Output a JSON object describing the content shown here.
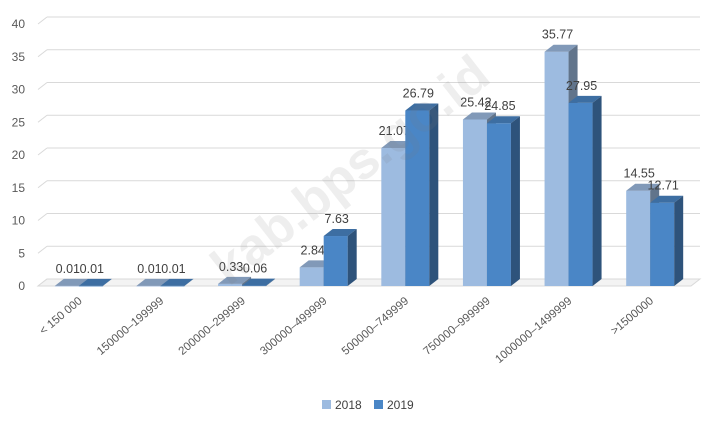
{
  "watermark": "kab.bps.go.id",
  "chart_data": {
    "type": "bar",
    "title": "",
    "xlabel": "",
    "ylabel": "",
    "ylim": [
      0,
      40
    ],
    "yticks": [
      0,
      5,
      10,
      15,
      20,
      25,
      30,
      35,
      40
    ],
    "grid": true,
    "legend": "bottom",
    "style": "3d-clustered-column",
    "categories": [
      "< 150 000",
      "150000–199999",
      "200000–299999",
      "300000–499999",
      "500000–749999",
      "750000–999999",
      "1000000–1499999",
      ">1500000"
    ],
    "series": [
      {
        "name": "2018",
        "color": "#9DBBE0",
        "values": [
          0.01,
          0.01,
          0.33,
          2.84,
          21.07,
          25.42,
          35.77,
          14.55
        ],
        "labels": [
          "0.01",
          "0.01",
          "0.33",
          "2.84",
          "21.07",
          "25.42",
          "35.77",
          "14.55"
        ]
      },
      {
        "name": "2019",
        "color": "#4A86C6",
        "values": [
          0.01,
          0.01,
          0.06,
          7.63,
          26.79,
          24.85,
          27.95,
          12.71
        ],
        "labels": [
          "0.01",
          "0.01",
          "0.06",
          "7.63",
          "26.79",
          "24.85",
          "27.95",
          "12.71"
        ]
      }
    ]
  }
}
